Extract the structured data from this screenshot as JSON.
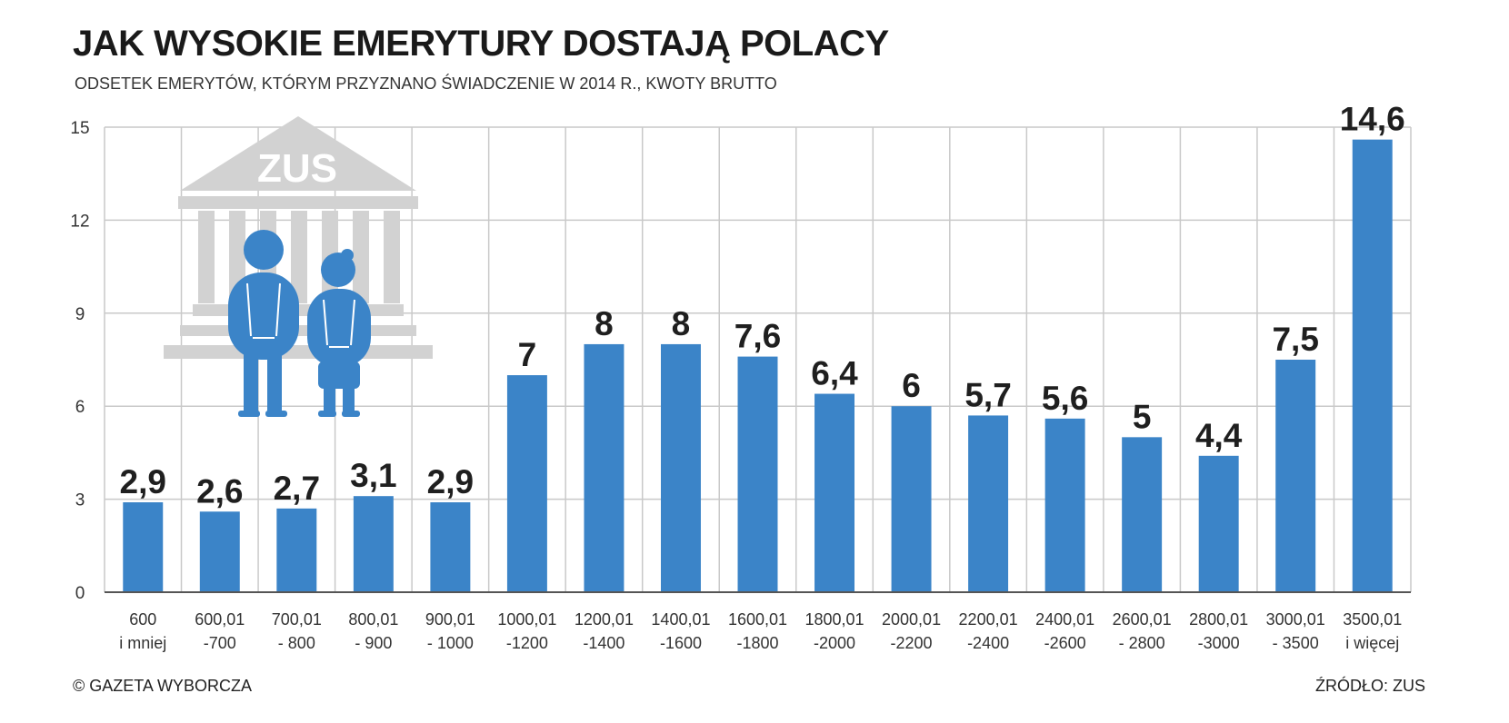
{
  "header": {
    "title": "JAK WYSOKIE EMERYTURY DOSTAJĄ POLACY",
    "subtitle": "ODSETEK EMERYTÓW, KTÓRYM PRZYZNANO ŚWIADCZENIE W 2014 R., KWOTY BRUTTO"
  },
  "footer": {
    "copyright": "© GAZETA WYBORCZA",
    "source": "ŹRÓDŁO: ZUS"
  },
  "illustration": {
    "building_text": "ZUS",
    "icons": [
      "bank-building-icon",
      "elderly-man-icon",
      "elderly-woman-icon"
    ]
  },
  "colors": {
    "bar": "#3b84c8",
    "grid": "#c9c9c9",
    "building": "#d2d2d2"
  },
  "chart_data": {
    "type": "bar",
    "categories": [
      [
        "600",
        "i mniej"
      ],
      [
        "600,01",
        "-700"
      ],
      [
        "700,01",
        "- 800"
      ],
      [
        "800,01",
        "- 900"
      ],
      [
        "900,01",
        "- 1000"
      ],
      [
        "1000,01",
        "-1200"
      ],
      [
        "1200,01",
        "-1400"
      ],
      [
        "1400,01",
        "-1600"
      ],
      [
        "1600,01",
        "-1800"
      ],
      [
        "1800,01",
        "-2000"
      ],
      [
        "2000,01",
        "-2200"
      ],
      [
        "2200,01",
        "-2400"
      ],
      [
        "2400,01",
        "-2600"
      ],
      [
        "2600,01",
        "- 2800"
      ],
      [
        "2800,01",
        "-3000"
      ],
      [
        "3000,01",
        "- 3500"
      ],
      [
        "3500,01",
        "i więcej"
      ]
    ],
    "values": [
      2.9,
      2.6,
      2.7,
      3.1,
      2.9,
      7,
      8,
      8,
      7.6,
      6.4,
      6,
      5.7,
      5.6,
      5,
      4.4,
      7.5,
      14.6
    ],
    "value_labels": [
      "2,9",
      "2,6",
      "2,7",
      "3,1",
      "2,9",
      "7",
      "8",
      "8",
      "7,6",
      "6,4",
      "6",
      "5,7",
      "5,6",
      "5",
      "4,4",
      "7,5",
      "14,6"
    ],
    "yticks": [
      "0",
      "3",
      "6",
      "9",
      "12",
      "15"
    ],
    "ylim": [
      0,
      15
    ],
    "grid": true
  }
}
